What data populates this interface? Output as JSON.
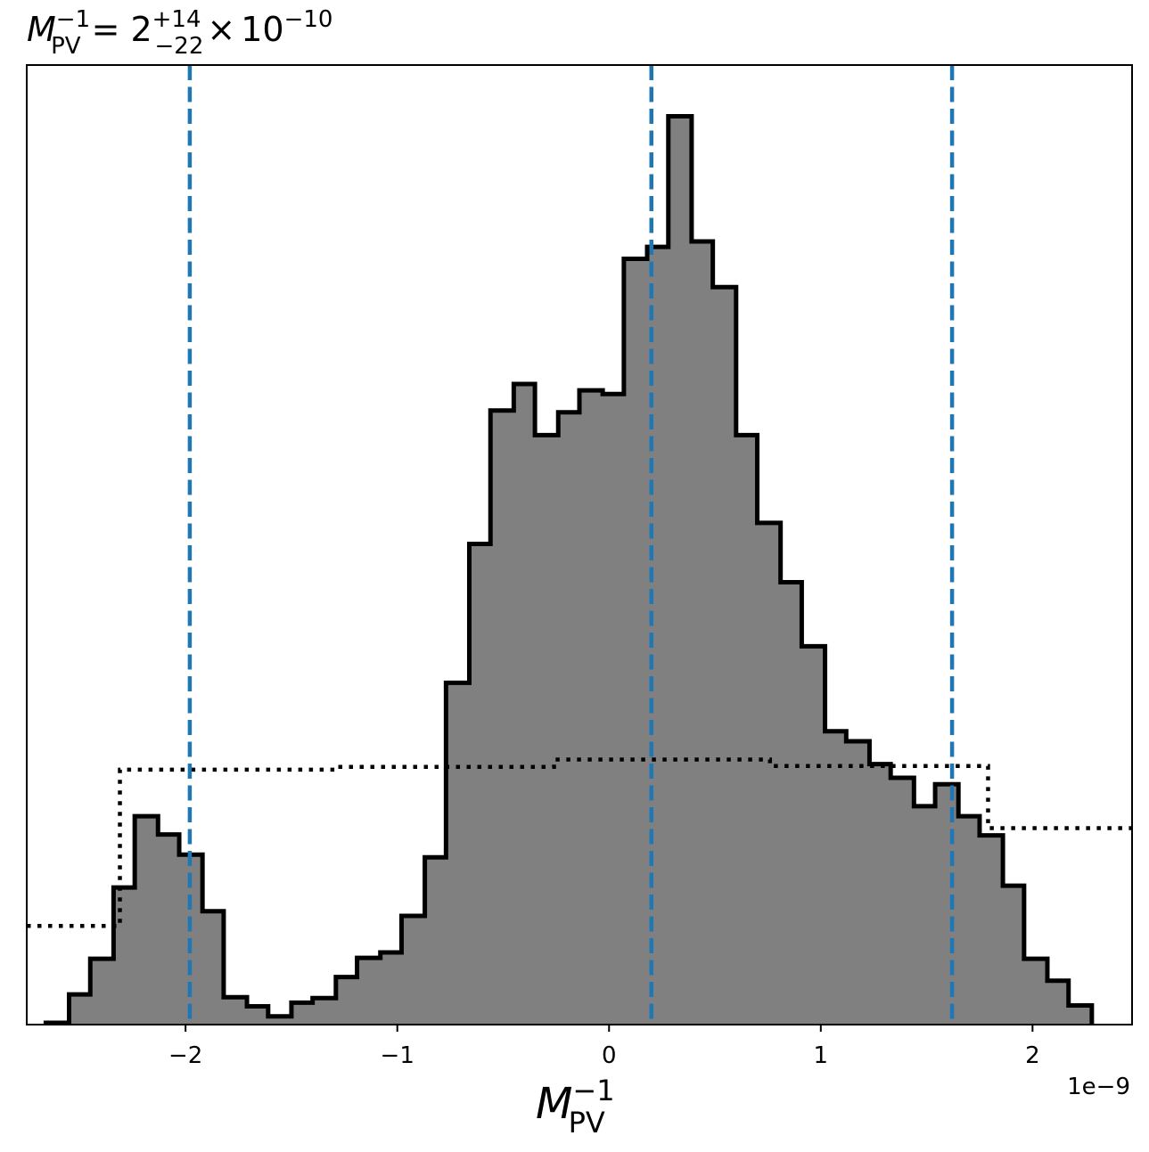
{
  "chart_data": {
    "type": "histogram",
    "title": {
      "symbol": "M",
      "symbol_sub": "PV",
      "symbol_sup": "−1",
      "equals": "=",
      "central": "2",
      "err_plus": "+14",
      "err_minus": "−22",
      "times": "×",
      "scale": "10",
      "scale_exp": "−10"
    },
    "xlabel": {
      "symbol": "M",
      "sub": "PV",
      "sup": "−1"
    },
    "x_offset_text": "1e−9",
    "xlim": [
      -2.75,
      2.47
    ],
    "ylim": [
      0,
      1.05
    ],
    "x_unit_scale": 1e-09,
    "xticks": [
      -2,
      -1,
      0,
      1,
      2
    ],
    "xtick_labels": [
      "−2",
      "−1",
      "0",
      "1",
      "2"
    ],
    "histogram": {
      "color": "#808080",
      "edge_color": "#000000",
      "bin_edges": [
        -2.66,
        -2.55,
        -2.45,
        -2.34,
        -2.24,
        -2.13,
        -2.03,
        -1.92,
        -1.82,
        -1.71,
        -1.61,
        -1.5,
        -1.4,
        -1.29,
        -1.19,
        -1.08,
        -0.98,
        -0.87,
        -0.77,
        -0.66,
        -0.56,
        -0.45,
        -0.35,
        -0.24,
        -0.14,
        -0.03,
        0.07,
        0.18,
        0.28,
        0.39,
        0.49,
        0.6,
        0.7,
        0.81,
        0.91,
        1.02,
        1.12,
        1.23,
        1.33,
        1.44,
        1.54,
        1.65,
        1.75,
        1.86,
        1.96,
        2.07,
        2.17,
        2.28
      ],
      "values": [
        0.002,
        0.033,
        0.072,
        0.15,
        0.228,
        0.208,
        0.186,
        0.124,
        0.03,
        0.02,
        0.009,
        0.024,
        0.029,
        0.052,
        0.073,
        0.079,
        0.119,
        0.183,
        0.374,
        0.526,
        0.672,
        0.701,
        0.645,
        0.67,
        0.694,
        0.69,
        0.838,
        0.851,
        0.994,
        0.857,
        0.807,
        0.645,
        0.549,
        0.484,
        0.414,
        0.321,
        0.31,
        0.285,
        0.27,
        0.239,
        0.263,
        0.228,
        0.207,
        0.152,
        0.072,
        0.048,
        0.021
      ]
    },
    "prior": {
      "style": "dotted",
      "color": "#000000",
      "edges": [
        -2.75,
        -2.31,
        -1.29,
        -0.26,
        0.76,
        1.79,
        2.47
      ],
      "values": [
        0.108,
        0.279,
        0.282,
        0.29,
        0.283,
        0.215
      ]
    },
    "quantile_lines": {
      "color": "#1f77b4",
      "style": "dashed",
      "x": [
        -1.98,
        0.2,
        1.62
      ]
    }
  }
}
